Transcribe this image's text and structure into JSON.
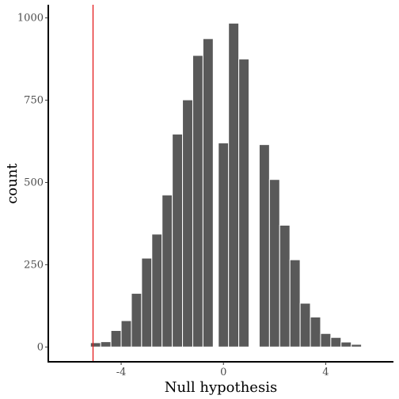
{
  "chart_data": {
    "type": "bar",
    "xlabel": "Null hypothesis",
    "ylabel": "count",
    "xlim": [
      -6.85,
      6.65
    ],
    "ylim": [
      -45,
      1040
    ],
    "x_ticks": [
      -4,
      0,
      4
    ],
    "x_tick_labels": [
      "-4",
      "0",
      "4"
    ],
    "y_ticks": [
      0,
      250,
      500,
      750,
      1000
    ],
    "y_tick_labels": [
      "0",
      "250",
      "500",
      "750",
      "1000"
    ],
    "bin_width": 0.4,
    "bars": [
      {
        "x": -5.8,
        "count": 1
      },
      {
        "x": -5.0,
        "count": 13
      },
      {
        "x": -4.6,
        "count": 16
      },
      {
        "x": -4.2,
        "count": 50
      },
      {
        "x": -3.8,
        "count": 80
      },
      {
        "x": -3.4,
        "count": 163
      },
      {
        "x": -3.0,
        "count": 270
      },
      {
        "x": -2.6,
        "count": 343
      },
      {
        "x": -2.2,
        "count": 462
      },
      {
        "x": -1.8,
        "count": 647
      },
      {
        "x": -1.4,
        "count": 751
      },
      {
        "x": -1.0,
        "count": 886
      },
      {
        "x": -0.6,
        "count": 937
      },
      {
        "x": 0.0,
        "count": 620
      },
      {
        "x": 0.4,
        "count": 984
      },
      {
        "x": 0.8,
        "count": 875
      },
      {
        "x": 1.6,
        "count": 615
      },
      {
        "x": 2.0,
        "count": 509
      },
      {
        "x": 2.4,
        "count": 370
      },
      {
        "x": 2.8,
        "count": 265
      },
      {
        "x": 3.2,
        "count": 133
      },
      {
        "x": 3.6,
        "count": 91
      },
      {
        "x": 4.0,
        "count": 41
      },
      {
        "x": 4.4,
        "count": 29
      },
      {
        "x": 4.8,
        "count": 15
      },
      {
        "x": 5.2,
        "count": 8
      }
    ],
    "reference_line": {
      "x": -5.1,
      "color": "#e31a1c"
    },
    "bar_color": "#595959",
    "grid": false,
    "legend": "none"
  }
}
